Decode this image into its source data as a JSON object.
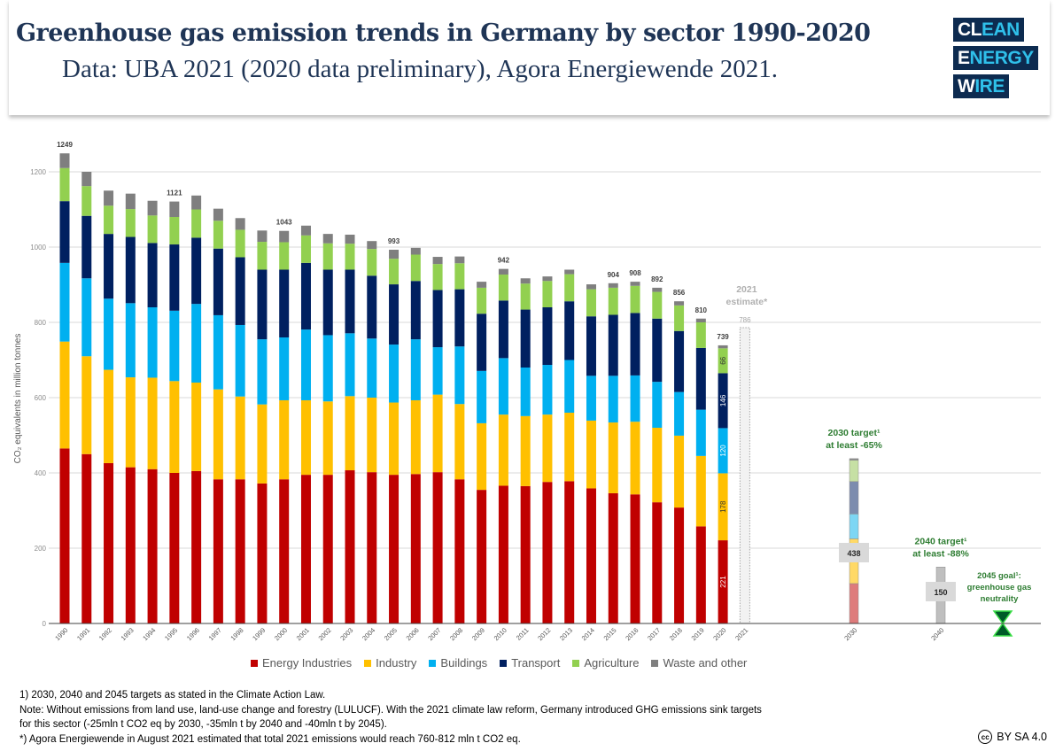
{
  "header": {
    "title": "Greenhouse gas emission trends in Germany by sector 1990-2020",
    "subtitle": "Data: UBA 2021 (2020 data preliminary), Agora Energiewende 2021."
  },
  "logo": {
    "line1": [
      "CL",
      "EAN"
    ],
    "line2": [
      "E",
      "NERGY"
    ],
    "line3": [
      "W",
      "IRE"
    ]
  },
  "chart_data": {
    "type": "bar",
    "stacked": true,
    "ylabel": "CO₂ equivalents in million tonnes",
    "ylim": [
      0,
      1300
    ],
    "yticks": [
      0,
      200,
      400,
      600,
      800,
      1000,
      1200
    ],
    "grid": true,
    "legend_placement": "bottom",
    "categories": [
      "1990",
      "1991",
      "1992",
      "1993",
      "1994",
      "1995",
      "1996",
      "1997",
      "1998",
      "1999",
      "2000",
      "2001",
      "2002",
      "2003",
      "2004",
      "2005",
      "2006",
      "2007",
      "2008",
      "2009",
      "2010",
      "2011",
      "2012",
      "2013",
      "2014",
      "2015",
      "2016",
      "2017",
      "2018",
      "2019",
      "2020"
    ],
    "series": [
      {
        "name": "Energy Industries",
        "color": "#c00000",
        "values": [
          465,
          450,
          426,
          415,
          410,
          400,
          405,
          383,
          383,
          372,
          383,
          395,
          395,
          407,
          402,
          395,
          397,
          402,
          383,
          355,
          366,
          365,
          376,
          378,
          359,
          346,
          343,
          322,
          308,
          258,
          221
        ]
      },
      {
        "name": "Industry",
        "color": "#ffc000",
        "values": [
          284,
          260,
          248,
          239,
          243,
          244,
          235,
          239,
          220,
          210,
          210,
          198,
          195,
          197,
          198,
          192,
          196,
          206,
          200,
          177,
          189,
          186,
          179,
          182,
          180,
          188,
          193,
          198,
          191,
          187,
          178
        ]
      },
      {
        "name": "Buildings",
        "color": "#00b0f0",
        "values": [
          209,
          207,
          189,
          197,
          187,
          187,
          209,
          197,
          190,
          173,
          167,
          188,
          176,
          167,
          157,
          154,
          162,
          126,
          153,
          139,
          150,
          129,
          132,
          140,
          119,
          124,
          123,
          122,
          116,
          123,
          120
        ]
      },
      {
        "name": "Transport",
        "color": "#002060",
        "values": [
          164,
          166,
          172,
          176,
          171,
          176,
          176,
          177,
          180,
          185,
          180,
          177,
          174,
          169,
          167,
          160,
          155,
          152,
          152,
          152,
          153,
          154,
          153,
          156,
          158,
          162,
          166,
          168,
          162,
          164,
          146
        ]
      },
      {
        "name": "Agriculture",
        "color": "#92d050",
        "values": [
          88,
          79,
          75,
          74,
          73,
          73,
          75,
          74,
          73,
          74,
          73,
          73,
          70,
          69,
          71,
          68,
          70,
          69,
          69,
          69,
          69,
          69,
          70,
          72,
          72,
          72,
          72,
          71,
          68,
          68,
          66
        ]
      },
      {
        "name": "Waste and other",
        "color": "#7f7f7f",
        "values": [
          39,
          38,
          40,
          41,
          39,
          41,
          37,
          32,
          31,
          30,
          30,
          26,
          25,
          24,
          21,
          24,
          18,
          19,
          18,
          16,
          15,
          14,
          12,
          12,
          13,
          12,
          11,
          11,
          11,
          10,
          8
        ]
      }
    ],
    "total_labels": {
      "1990": "1249",
      "1995": "1121",
      "2000": "1043",
      "2005": "993",
      "2010": "942",
      "2015": "904",
      "2016": "908",
      "2017": "892",
      "2018": "856",
      "2019": "810",
      "2020": "739"
    },
    "segment_labels_year": "2020",
    "segment_labels": [
      "221",
      "178",
      "120",
      "146",
      "66"
    ],
    "estimate": {
      "year": "2021",
      "value": 786,
      "value_label": "786",
      "label_line1": "2021",
      "label_line2": "estimate*"
    },
    "targets": [
      {
        "year": "2030",
        "values": [
          106,
          119,
          66,
          86,
          57,
          4
        ],
        "colors": [
          "#de7b7b",
          "#ffd966",
          "#7dd6f4",
          "#7c8cae",
          "#c6e0a4",
          "#8c8c8c"
        ],
        "total_label": "438",
        "title": "2030 target¹",
        "subtitle": "at least -65%"
      },
      {
        "year": "2040",
        "values": [
          150
        ],
        "colors": [
          "#bfbfbf"
        ],
        "total_label": "150",
        "title": "2040 target¹",
        "subtitle": "at least -88%"
      }
    ],
    "goal": {
      "year": "2045",
      "value": 0,
      "line1": "2045 goal¹:",
      "line2": "greenhouse gas",
      "line3": "neutrality",
      "color": "#005a28"
    }
  },
  "notes": [
    "1) 2030, 2040 and 2045 targets as stated in the Climate Action Law.",
    "Note: Without emissions from land use, land-use change and forestry (LULUCF). With the 2021 climate law reform, Germany introduced GHG emissions sink targets",
    "for this sector (-25mln t CO2 eq by 2030, -35mln t by 2040 and -40mln t by 2045).",
    "*) Agora Energiewende in August 2021 estimated that total 2021 emissions would reach 760-812 mln t CO2 eq."
  ],
  "license": {
    "icon": "cc",
    "text": "BY SA 4.0"
  }
}
